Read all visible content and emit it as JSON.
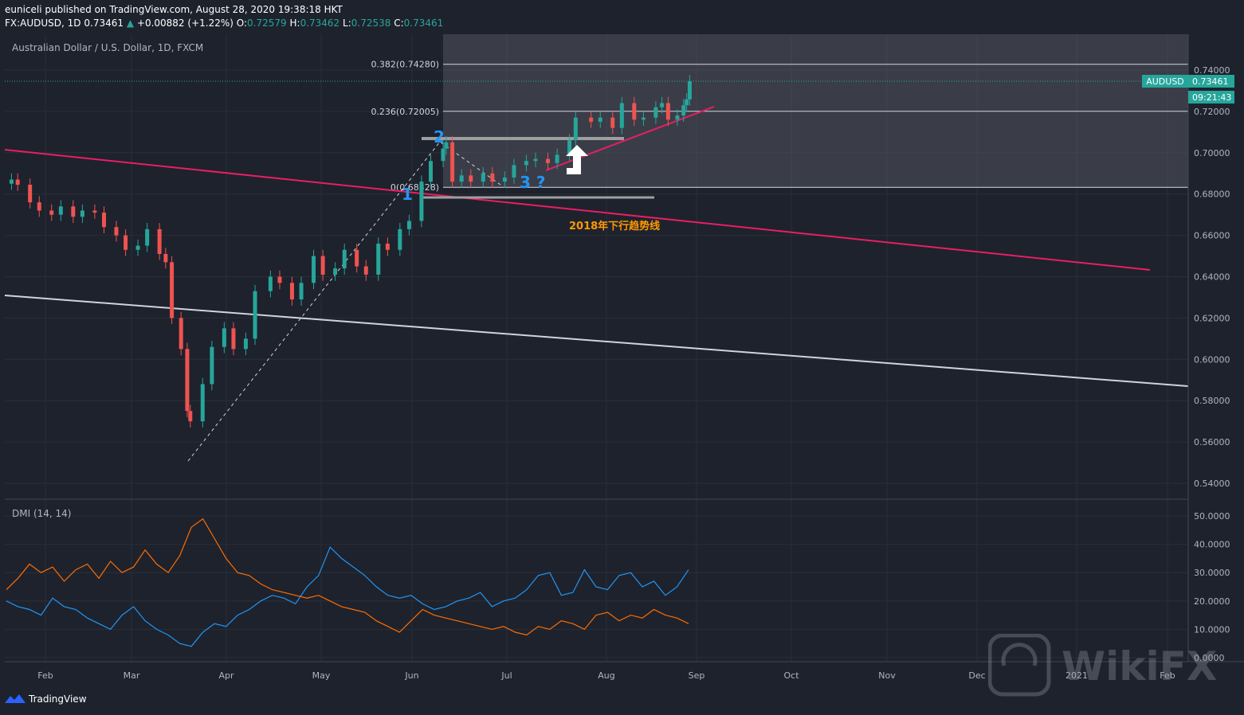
{
  "header": {
    "published_line": "euniceli published on TradingView.com, August 28, 2020 19:38:18 HKT",
    "symbol": "FX:AUDUSD, 1D",
    "last": "0.73461",
    "change_arrow": "▲",
    "change": "+0.00882 (+1.22%)",
    "o_label": "O:",
    "o_value": "0.72579",
    "h_label": "H:",
    "h_value": "0.73462",
    "l_label": "L:",
    "l_value": "0.72538",
    "c_label": "C:",
    "c_value": "0.73461"
  },
  "colors": {
    "background": "#1e222d",
    "up": "#26a69a",
    "down": "#ef5350",
    "trend_line": "#e91e63",
    "plus_di": "#2196f3",
    "minus_di": "#ff6d00",
    "annotation_orange": "#ff9800",
    "wave_label": "#2196f3"
  },
  "chart_data": [
    {
      "type": "candlestick",
      "title": "Australian Dollar / U.S. Dollar, 1D, FXCM",
      "x_tick_labels": [
        "Feb",
        "Mar",
        "Apr",
        "May",
        "Jun",
        "Jul",
        "Aug",
        "Sep",
        "Oct",
        "Nov",
        "Dec",
        "2021",
        "Feb"
      ],
      "y_tick_labels": [
        "0.74000",
        "0.72000",
        "0.70000",
        "0.68000",
        "0.66000",
        "0.64000",
        "0.62000",
        "0.60000",
        "0.58000",
        "0.56000",
        "0.54000"
      ],
      "ylim": [
        0.533,
        0.75
      ],
      "grid": true,
      "price_tag": {
        "symbol": "AUDUSD",
        "price": "0.73461",
        "countdown": "09:21:43"
      },
      "series": [
        {
          "name": "AUDUSD",
          "points": [
            {
              "date": "2020-01-21",
              "close": 0.687
            },
            {
              "date": "2020-01-23",
              "close": 0.6845
            },
            {
              "date": "2020-01-27",
              "close": 0.676
            },
            {
              "date": "2020-01-30",
              "close": 0.672
            },
            {
              "date": "2020-02-03",
              "close": 0.67
            },
            {
              "date": "2020-02-06",
              "close": 0.674
            },
            {
              "date": "2020-02-10",
              "close": 0.669
            },
            {
              "date": "2020-02-13",
              "close": 0.672
            },
            {
              "date": "2020-02-17",
              "close": 0.671
            },
            {
              "date": "2020-02-20",
              "close": 0.664
            },
            {
              "date": "2020-02-24",
              "close": 0.66
            },
            {
              "date": "2020-02-27",
              "close": 0.653
            },
            {
              "date": "2020-03-02",
              "close": 0.655
            },
            {
              "date": "2020-03-05",
              "close": 0.663
            },
            {
              "date": "2020-03-09",
              "close": 0.651
            },
            {
              "date": "2020-03-11",
              "close": 0.647
            },
            {
              "date": "2020-03-13",
              "close": 0.62
            },
            {
              "date": "2020-03-16",
              "close": 0.605
            },
            {
              "date": "2020-03-18",
              "close": 0.575
            },
            {
              "date": "2020-03-19",
              "close": 0.57
            },
            {
              "date": "2020-03-23",
              "close": 0.588
            },
            {
              "date": "2020-03-26",
              "close": 0.606
            },
            {
              "date": "2020-03-30",
              "close": 0.615
            },
            {
              "date": "2020-04-02",
              "close": 0.605
            },
            {
              "date": "2020-04-06",
              "close": 0.61
            },
            {
              "date": "2020-04-09",
              "close": 0.633
            },
            {
              "date": "2020-04-14",
              "close": 0.64
            },
            {
              "date": "2020-04-17",
              "close": 0.637
            },
            {
              "date": "2020-04-21",
              "close": 0.629
            },
            {
              "date": "2020-04-24",
              "close": 0.637
            },
            {
              "date": "2020-04-28",
              "close": 0.65
            },
            {
              "date": "2020-05-01",
              "close": 0.641
            },
            {
              "date": "2020-05-05",
              "close": 0.644
            },
            {
              "date": "2020-05-08",
              "close": 0.653
            },
            {
              "date": "2020-05-12",
              "close": 0.645
            },
            {
              "date": "2020-05-15",
              "close": 0.641
            },
            {
              "date": "2020-05-19",
              "close": 0.656
            },
            {
              "date": "2020-05-22",
              "close": 0.653
            },
            {
              "date": "2020-05-26",
              "close": 0.663
            },
            {
              "date": "2020-05-29",
              "close": 0.667
            },
            {
              "date": "2020-06-02",
              "close": 0.686
            },
            {
              "date": "2020-06-05",
              "close": 0.696
            },
            {
              "date": "2020-06-09",
              "close": 0.702
            },
            {
              "date": "2020-06-10",
              "close": 0.705
            },
            {
              "date": "2020-06-12",
              "close": 0.686
            },
            {
              "date": "2020-06-15",
              "close": 0.689
            },
            {
              "date": "2020-06-18",
              "close": 0.686
            },
            {
              "date": "2020-06-22",
              "close": 0.69
            },
            {
              "date": "2020-06-25",
              "close": 0.686
            },
            {
              "date": "2020-06-29",
              "close": 0.688
            },
            {
              "date": "2020-07-02",
              "close": 0.694
            },
            {
              "date": "2020-07-06",
              "close": 0.696
            },
            {
              "date": "2020-07-09",
              "close": 0.697
            },
            {
              "date": "2020-07-13",
              "close": 0.695
            },
            {
              "date": "2020-07-16",
              "close": 0.699
            },
            {
              "date": "2020-07-20",
              "close": 0.706
            },
            {
              "date": "2020-07-22",
              "close": 0.717
            },
            {
              "date": "2020-07-27",
              "close": 0.715
            },
            {
              "date": "2020-07-30",
              "close": 0.717
            },
            {
              "date": "2020-08-03",
              "close": 0.712
            },
            {
              "date": "2020-08-06",
              "close": 0.724
            },
            {
              "date": "2020-08-10",
              "close": 0.716
            },
            {
              "date": "2020-08-13",
              "close": 0.717
            },
            {
              "date": "2020-08-17",
              "close": 0.722
            },
            {
              "date": "2020-08-19",
              "close": 0.724
            },
            {
              "date": "2020-08-21",
              "close": 0.716
            },
            {
              "date": "2020-08-24",
              "close": 0.718
            },
            {
              "date": "2020-08-26",
              "close": 0.723
            },
            {
              "date": "2020-08-27",
              "close": 0.7258
            },
            {
              "date": "2020-08-28",
              "close": 0.7346
            }
          ]
        }
      ],
      "fibonacci": [
        {
          "label": "0.382(0.74280)",
          "price": 0.7428
        },
        {
          "label": "0.236(0.72005)",
          "price": 0.72005
        },
        {
          "label": "0(0.68328)",
          "price": 0.68328
        }
      ],
      "annotations": {
        "wave_1": "1",
        "wave_2": "2",
        "wave_3": "3 ?",
        "downtrend_label": "2018年下行趋势线"
      }
    },
    {
      "type": "line",
      "title": "DMI (14, 14)",
      "y_tick_labels": [
        "50.0000",
        "40.0000",
        "30.0000",
        "20.0000",
        "10.0000",
        "0.0000"
      ],
      "ylim": [
        0,
        55
      ],
      "x_tick_labels": [
        "Feb",
        "Mar",
        "Apr",
        "May",
        "Jun",
        "Jul",
        "Aug",
        "Sep",
        "Oct",
        "Nov",
        "Dec",
        "2021",
        "Feb"
      ],
      "series": [
        {
          "values": [
            20,
            18,
            17,
            15,
            21,
            18,
            17,
            14,
            12,
            10,
            15,
            18,
            13,
            10,
            8,
            5,
            4,
            9,
            12,
            11,
            15,
            17,
            20,
            22,
            21,
            19,
            25,
            29,
            39,
            35,
            32,
            29,
            25,
            22,
            21,
            22,
            19,
            17,
            18,
            20,
            21,
            23,
            18,
            20,
            21,
            24,
            29,
            30,
            22,
            23,
            31,
            25,
            24,
            29,
            30,
            25,
            27,
            22,
            25,
            31
          ]
        },
        {
          "values": [
            24,
            28,
            33,
            30,
            32,
            27,
            31,
            33,
            28,
            34,
            30,
            32,
            38,
            33,
            30,
            36,
            46,
            49,
            42,
            35,
            30,
            29,
            26,
            24,
            23,
            22,
            21,
            22,
            20,
            18,
            17,
            16,
            13,
            11,
            9,
            13,
            17,
            15,
            14,
            13,
            12,
            11,
            10,
            11,
            9,
            8,
            11,
            10,
            13,
            12,
            10,
            15,
            16,
            13,
            15,
            14,
            17,
            15,
            14,
            12
          ]
        }
      ]
    }
  ],
  "watermark": {
    "text": "WikiFX"
  },
  "footer": {
    "brand": "TradingView"
  }
}
